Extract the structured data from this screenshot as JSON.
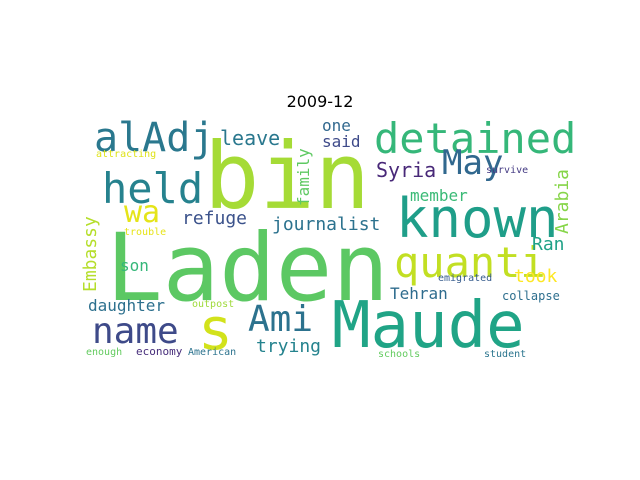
{
  "title": "2009-12",
  "words": [
    {
      "text": "Laden",
      "color": "#5cc863"
    },
    {
      "text": "bin",
      "color": "#a5db36"
    },
    {
      "text": "Maude",
      "color": "#20a486"
    },
    {
      "text": "known",
      "color": "#1f9e89"
    },
    {
      "text": "detained",
      "color": "#35b779"
    },
    {
      "text": "quanti",
      "color": "#c2df23"
    },
    {
      "text": "alAdj",
      "color": "#2a788e"
    },
    {
      "text": "held",
      "color": "#26828e"
    },
    {
      "text": "name",
      "color": "#3e4a89"
    },
    {
      "text": "Ami",
      "color": "#2c728e"
    },
    {
      "text": "May",
      "color": "#31688e"
    },
    {
      "text": "s",
      "color": "#d2e21b"
    },
    {
      "text": "wa",
      "color": "#e5e419"
    },
    {
      "text": "refuge",
      "color": "#3b528b"
    },
    {
      "text": "journalist",
      "color": "#2c728e"
    },
    {
      "text": "leave",
      "color": "#2a788e"
    },
    {
      "text": "one",
      "color": "#31688e"
    },
    {
      "text": "said",
      "color": "#3e4a89"
    },
    {
      "text": "Syria",
      "color": "#482878"
    },
    {
      "text": "member",
      "color": "#3aba76"
    },
    {
      "text": "family",
      "color": "#5ec962"
    },
    {
      "text": "Arabia",
      "color": "#86d549"
    },
    {
      "text": "Embassy",
      "color": "#b5de2b"
    },
    {
      "text": "son",
      "color": "#35b779"
    },
    {
      "text": "Ran",
      "color": "#1fa187"
    },
    {
      "text": "took",
      "color": "#fde725"
    },
    {
      "text": "daughter",
      "color": "#2d708e"
    },
    {
      "text": "Tehran",
      "color": "#2f6c8e"
    },
    {
      "text": "trying",
      "color": "#25838e"
    },
    {
      "text": "attracting",
      "color": "#dfe318"
    },
    {
      "text": "trouble",
      "color": "#e7e419"
    },
    {
      "text": "outpost",
      "color": "#9fda3a"
    },
    {
      "text": "emigrated",
      "color": "#365c8d"
    },
    {
      "text": "collapse",
      "color": "#2e6f8e"
    },
    {
      "text": "survive",
      "color": "#443a83"
    },
    {
      "text": "enough",
      "color": "#63cb5f"
    },
    {
      "text": "economy",
      "color": "#472d7b"
    },
    {
      "text": "American",
      "color": "#2c738e"
    },
    {
      "text": "schools",
      "color": "#63cb5f"
    },
    {
      "text": "student",
      "color": "#2b758e"
    }
  ]
}
